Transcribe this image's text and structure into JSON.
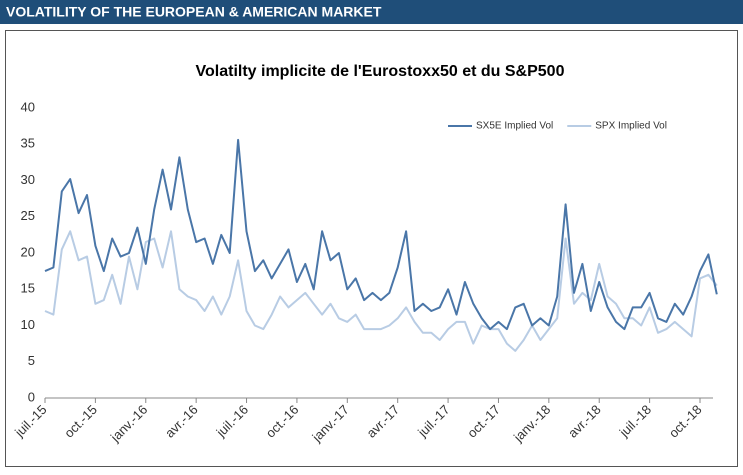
{
  "banner": "VOLATILITY OF THE EUROPEAN & AMERICAN MARKET",
  "chart_data": {
    "type": "line",
    "title": "Volatilty implicite de l'Eurostoxx50 et du S&P500",
    "categories": [
      "juil.-15",
      null,
      null,
      null,
      null,
      null,
      "oct.-15",
      null,
      null,
      null,
      null,
      null,
      "janv.-16",
      null,
      null,
      null,
      null,
      null,
      "avr.-16",
      null,
      null,
      null,
      null,
      null,
      "juil.-16",
      null,
      null,
      null,
      null,
      null,
      "oct.-16",
      null,
      null,
      null,
      null,
      null,
      "janv.-17",
      null,
      null,
      null,
      null,
      null,
      "avr.-17",
      null,
      null,
      null,
      null,
      null,
      "juil.-17",
      null,
      null,
      null,
      null,
      null,
      "oct.-17",
      null,
      null,
      null,
      null,
      null,
      "janv.-18",
      null,
      null,
      null,
      null,
      null,
      "avr.-18",
      null,
      null,
      null,
      null,
      null,
      "juil.-18",
      null,
      null,
      null,
      null,
      null,
      "oct.-18",
      null,
      null
    ],
    "series": [
      {
        "name": "SX5E Implied Vol",
        "color": "#4a76a8",
        "values": [
          17.5,
          18,
          28.5,
          30.2,
          25.5,
          28,
          21,
          17.5,
          22,
          19.5,
          20,
          23.5,
          18.5,
          26,
          31.5,
          26,
          33.2,
          26,
          21.5,
          22,
          18.5,
          22.5,
          20,
          35.6,
          23,
          17.5,
          19,
          16.5,
          18.5,
          20.5,
          16,
          18.5,
          15,
          23,
          19,
          20,
          15,
          16.5,
          13.5,
          14.5,
          13.5,
          14.5,
          18,
          23,
          12,
          13,
          12,
          12.5,
          15,
          11.5,
          16,
          13,
          11,
          9.5,
          10.5,
          9.5,
          12.5,
          13,
          10,
          11,
          10,
          14,
          26.7,
          14.5,
          18.5,
          12,
          16,
          12.5,
          10.5,
          9.5,
          12.5,
          12.5,
          14.5,
          11,
          10.5,
          13,
          11.5,
          14,
          17.5,
          19.8,
          14.3
        ]
      },
      {
        "name": "SPX Implied Vol",
        "color": "#b8cce4",
        "values": [
          12,
          11.5,
          20.5,
          23,
          19,
          19.5,
          13,
          13.5,
          17,
          13,
          19.5,
          15,
          21.5,
          22,
          18,
          23,
          15,
          14,
          13.5,
          12,
          14,
          11.5,
          14,
          19,
          12,
          10,
          9.5,
          11.5,
          14,
          12.5,
          13.5,
          14.5,
          13,
          11.5,
          13,
          11,
          10.5,
          11.5,
          9.5,
          9.5,
          9.5,
          10,
          11,
          12.5,
          10.5,
          9,
          9,
          8,
          9.5,
          10.5,
          10.5,
          7.5,
          10,
          9.5,
          9.5,
          7.5,
          6.5,
          8,
          10,
          8,
          9.5,
          11,
          22,
          13,
          14.5,
          13.5,
          18.5,
          14,
          13,
          11,
          11,
          10,
          12.5,
          9,
          9.5,
          10.5,
          9.5,
          8.5,
          16.5,
          17,
          15.5
        ]
      }
    ],
    "ylim": [
      0,
      40
    ],
    "yticks": [
      0,
      5,
      10,
      15,
      20,
      25,
      30,
      35,
      40
    ],
    "grid": false,
    "legend": "top-right"
  }
}
